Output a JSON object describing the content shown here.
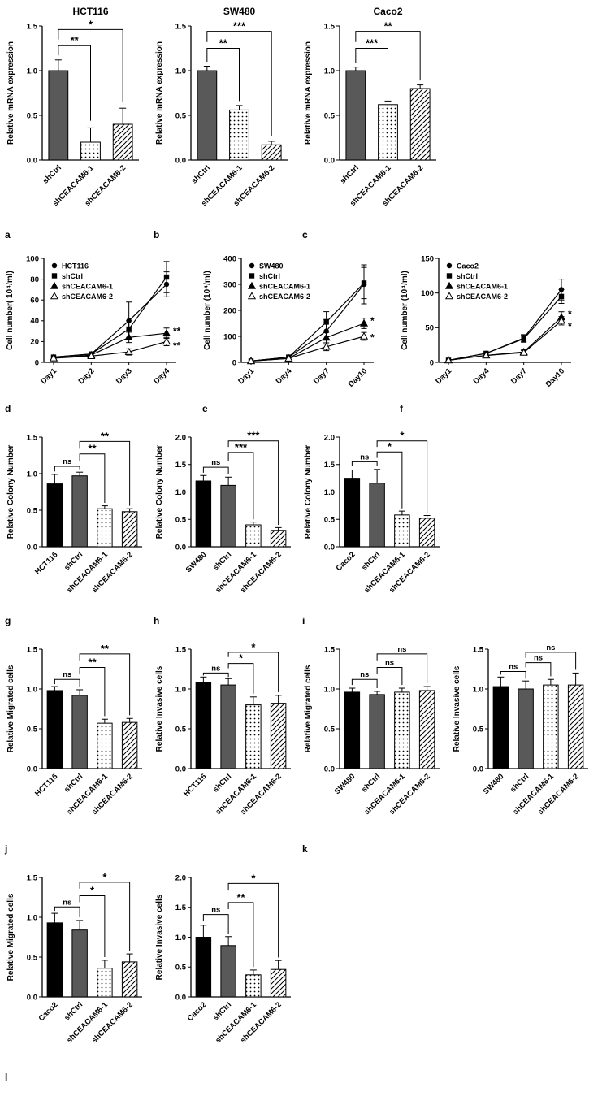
{
  "figure": {
    "background": "#ffffff",
    "axis_color": "#000000",
    "bar_gray": "#595959",
    "panel_letters": [
      "a",
      "b",
      "c",
      "d",
      "e",
      "f",
      "g",
      "h",
      "i",
      "j",
      "k",
      "l"
    ]
  },
  "chart_data": [
    {
      "name": "hct116-mrna",
      "panel": "a",
      "row": 0,
      "preset": "bar3",
      "type": "bar",
      "title": "HCT116",
      "ylabel": "Relative mRNA expression",
      "ylim": [
        0,
        1.5
      ],
      "yticks": [
        0,
        0.5,
        1.0,
        1.5
      ],
      "ytick_labels": [
        "0.0",
        "0.5",
        "1.0",
        "1.5"
      ],
      "categories": [
        "shCtrl",
        "shCEACAM6-1",
        "shCEACAM6-2"
      ],
      "values": [
        1.0,
        0.2,
        0.4
      ],
      "errors": [
        0.12,
        0.16,
        0.18
      ],
      "fills": [
        "gray",
        "dots",
        "hatch"
      ],
      "brackets": [
        {
          "a": 0,
          "b": 1,
          "y": 1.28,
          "ya": 1.17,
          "yb": 0.44,
          "label": "**"
        },
        {
          "a": 0,
          "b": 2,
          "y": 1.46,
          "ya": 1.35,
          "yb": 0.65,
          "label": "*"
        }
      ]
    },
    {
      "name": "sw480-mrna",
      "panel": "b",
      "row": 0,
      "preset": "bar3",
      "type": "bar",
      "title": "SW480",
      "ylabel": "Relative mRNA expression",
      "ylim": [
        0,
        1.5
      ],
      "yticks": [
        0,
        0.5,
        1.0,
        1.5
      ],
      "ytick_labels": [
        "0.0",
        "0.5",
        "1.0",
        "1.5"
      ],
      "categories": [
        "shCtrl",
        "shCEACAM6-1",
        "shCEACAM6-2"
      ],
      "values": [
        1.0,
        0.56,
        0.17
      ],
      "errors": [
        0.05,
        0.05,
        0.04
      ],
      "fills": [
        "gray",
        "dots",
        "hatch"
      ],
      "brackets": [
        {
          "a": 0,
          "b": 1,
          "y": 1.25,
          "ya": 1.1,
          "yb": 0.66,
          "label": "**"
        },
        {
          "a": 0,
          "b": 2,
          "y": 1.44,
          "ya": 1.32,
          "yb": 0.27,
          "label": "***"
        }
      ]
    },
    {
      "name": "caco2-mrna",
      "panel": "c",
      "row": 0,
      "preset": "bar3",
      "type": "bar",
      "title": "Caco2",
      "ylabel": "Relative mRNA expression",
      "ylim": [
        0,
        1.5
      ],
      "yticks": [
        0,
        0.5,
        1.0,
        1.5
      ],
      "ytick_labels": [
        "0.0",
        "0.5",
        "1.0",
        "1.5"
      ],
      "categories": [
        "shCtrl",
        "shCEACAM6-1",
        "shCEACAM6-2"
      ],
      "values": [
        1.0,
        0.62,
        0.8
      ],
      "errors": [
        0.04,
        0.04,
        0.04
      ],
      "fills": [
        "gray",
        "dots",
        "hatch"
      ],
      "brackets": [
        {
          "a": 0,
          "b": 1,
          "y": 1.25,
          "ya": 1.09,
          "yb": 0.71,
          "label": "***"
        },
        {
          "a": 0,
          "b": 2,
          "y": 1.44,
          "ya": 1.32,
          "yb": 0.89,
          "label": "**"
        }
      ]
    },
    {
      "name": "hct116-growth",
      "panel": "d",
      "row": 1,
      "preset": "line",
      "type": "line",
      "ylabel": "Cell number( 10⁴/ml)",
      "ylim": [
        0,
        100
      ],
      "yticks": [
        0,
        20,
        40,
        60,
        80,
        100
      ],
      "ytick_labels": [
        "0",
        "20",
        "40",
        "60",
        "80",
        "100"
      ],
      "categories": [
        "Day1",
        "Day2",
        "Day3",
        "Day4"
      ],
      "series": [
        {
          "name": "HCT116",
          "marker": "circle",
          "values": [
            5,
            8,
            40,
            75
          ],
          "errors": [
            0,
            0,
            18,
            12
          ]
        },
        {
          "name": "shCtrl",
          "marker": "square",
          "values": [
            5,
            8,
            32,
            82
          ],
          "errors": [
            0,
            0,
            8,
            15
          ]
        },
        {
          "name": "shCEACAM6-1",
          "marker": "triangle",
          "values": [
            4,
            7,
            24,
            28
          ],
          "errors": [
            0,
            0,
            5,
            5
          ]
        },
        {
          "name": "shCEACAM6-2",
          "marker": "triangle-open",
          "values": [
            4,
            6,
            10,
            20
          ],
          "errors": [
            0,
            0,
            3,
            4
          ]
        }
      ],
      "annotations": [
        {
          "xi": 3,
          "y": 30,
          "text": "**"
        },
        {
          "xi": 3,
          "y": 16,
          "text": "**"
        }
      ]
    },
    {
      "name": "sw480-growth",
      "panel": "e",
      "row": 1,
      "preset": "line",
      "type": "line",
      "ylabel": "Cell number (10⁴/ml)",
      "ylim": [
        0,
        400
      ],
      "yticks": [
        0,
        100,
        200,
        300,
        400
      ],
      "ytick_labels": [
        "0",
        "100",
        "200",
        "300",
        "400"
      ],
      "categories": [
        "Day1",
        "Day4",
        "Day7",
        "Day10"
      ],
      "series": [
        {
          "name": "SW480",
          "marker": "circle",
          "values": [
            5,
            20,
            120,
            300
          ],
          "errors": [
            0,
            0,
            45,
            75
          ]
        },
        {
          "name": "shCtrl",
          "marker": "square",
          "values": [
            5,
            20,
            155,
            305
          ],
          "errors": [
            0,
            0,
            40,
            60
          ]
        },
        {
          "name": "shCEACAM6-1",
          "marker": "triangle",
          "values": [
            5,
            15,
            95,
            150
          ],
          "errors": [
            0,
            0,
            25,
            20
          ]
        },
        {
          "name": "shCEACAM6-2",
          "marker": "triangle-open",
          "values": [
            5,
            15,
            60,
            100
          ],
          "errors": [
            0,
            0,
            15,
            15
          ]
        }
      ],
      "annotations": [
        {
          "xi": 3,
          "y": 160,
          "text": "*"
        },
        {
          "xi": 3,
          "y": 95,
          "text": "*"
        }
      ]
    },
    {
      "name": "caco2-growth",
      "panel": "f",
      "row": 1,
      "preset": "line",
      "type": "line",
      "ylabel": "Cell number (10⁴/ml)",
      "ylim": [
        0,
        150
      ],
      "yticks": [
        0,
        50,
        100,
        150
      ],
      "ytick_labels": [
        "0",
        "50",
        "100",
        "150"
      ],
      "categories": [
        "Day1",
        "Day4",
        "Day7",
        "Day10"
      ],
      "series": [
        {
          "name": "Caco2",
          "marker": "circle",
          "values": [
            3,
            13,
            35,
            105
          ],
          "errors": [
            0,
            0,
            5,
            15
          ]
        },
        {
          "name": "shCtrl",
          "marker": "square",
          "values": [
            3,
            13,
            34,
            95
          ],
          "errors": [
            0,
            0,
            5,
            10
          ]
        },
        {
          "name": "shCEACAM6-1",
          "marker": "triangle",
          "values": [
            3,
            10,
            15,
            65
          ],
          "errors": [
            0,
            0,
            3,
            8
          ]
        },
        {
          "name": "shCEACAM6-2",
          "marker": "triangle-open",
          "values": [
            3,
            10,
            14,
            60
          ],
          "errors": [
            0,
            0,
            3,
            6
          ]
        }
      ],
      "annotations": [
        {
          "xi": 3,
          "y": 70,
          "text": "*"
        },
        {
          "xi": 3,
          "y": 52,
          "text": "*"
        }
      ]
    },
    {
      "name": "hct116-colony",
      "panel": "g",
      "row": 2,
      "preset": "bar4",
      "type": "bar",
      "ylabel": "Relative Colony Number",
      "ylim": [
        0,
        1.5
      ],
      "yticks": [
        0,
        0.5,
        1.0,
        1.5
      ],
      "ytick_labels": [
        "0.0",
        "0.5",
        "1.0",
        "1.5"
      ],
      "categories": [
        "HCT116",
        "shCtrl",
        "shCEACAM6-1",
        "shCEACAM6-2"
      ],
      "values": [
        0.86,
        0.97,
        0.52,
        0.48
      ],
      "errors": [
        0.13,
        0.05,
        0.04,
        0.04
      ],
      "fills": [
        "black",
        "gray",
        "dots",
        "hatch"
      ],
      "brackets": [
        {
          "a": 0,
          "b": 1,
          "y": 1.1,
          "ya": 1.03,
          "yb": 1.06,
          "label": "ns"
        },
        {
          "a": 1,
          "b": 2,
          "y": 1.27,
          "ya": 1.17,
          "yb": 0.6,
          "label": "**"
        },
        {
          "a": 1,
          "b": 3,
          "y": 1.44,
          "ya": 1.34,
          "yb": 0.56,
          "label": "**"
        }
      ]
    },
    {
      "name": "sw480-colony",
      "panel": "h",
      "row": 2,
      "preset": "bar4",
      "type": "bar",
      "ylabel": "Relative Colony Number",
      "ylim": [
        0,
        2.0
      ],
      "yticks": [
        0,
        0.5,
        1.0,
        1.5,
        2.0
      ],
      "ytick_labels": [
        "0.0",
        "0.5",
        "1.0",
        "1.5",
        "2.0"
      ],
      "categories": [
        "SW480",
        "shCtrl",
        "shCEACAM6-1",
        "shCEACAM6-2"
      ],
      "values": [
        1.2,
        1.12,
        0.4,
        0.3
      ],
      "errors": [
        0.1,
        0.15,
        0.05,
        0.05
      ],
      "fills": [
        "black",
        "gray",
        "dots",
        "hatch"
      ],
      "brackets": [
        {
          "a": 0,
          "b": 1,
          "y": 1.45,
          "ya": 1.35,
          "yb": 1.32,
          "label": "ns"
        },
        {
          "a": 1,
          "b": 2,
          "y": 1.72,
          "ya": 1.57,
          "yb": 0.5,
          "label": "***"
        },
        {
          "a": 1,
          "b": 3,
          "y": 1.93,
          "ya": 1.82,
          "yb": 0.4,
          "label": "***"
        }
      ]
    },
    {
      "name": "caco2-colony",
      "panel": "i",
      "row": 2,
      "preset": "bar4",
      "type": "bar",
      "ylabel": "Relative Colony Number",
      "ylim": [
        0,
        2.0
      ],
      "yticks": [
        0,
        0.5,
        1.0,
        1.5,
        2.0
      ],
      "ytick_labels": [
        "0.0",
        "0.5",
        "1.0",
        "1.5",
        "2.0"
      ],
      "categories": [
        "Caco2",
        "shCtrl",
        "shCEACAM6-1",
        "shCEACAM6-2"
      ],
      "values": [
        1.25,
        1.16,
        0.58,
        0.52
      ],
      "errors": [
        0.15,
        0.25,
        0.07,
        0.05
      ],
      "fills": [
        "black",
        "gray",
        "dots",
        "hatch"
      ],
      "brackets": [
        {
          "a": 0,
          "b": 1,
          "y": 1.55,
          "ya": 1.47,
          "yb": 1.48,
          "label": "ns"
        },
        {
          "a": 1,
          "b": 2,
          "y": 1.73,
          "ya": 1.62,
          "yb": 0.7,
          "label": "*"
        },
        {
          "a": 1,
          "b": 3,
          "y": 1.93,
          "ya": 1.82,
          "yb": 0.62,
          "label": "*"
        }
      ]
    },
    {
      "name": "hct116-migrated",
      "panel": "j",
      "row": 3,
      "preset": "bar4t",
      "type": "bar",
      "ylabel": "Relative Migrated cells",
      "ylim": [
        0,
        1.5
      ],
      "yticks": [
        0,
        0.5,
        1.0,
        1.5
      ],
      "ytick_labels": [
        "0.0",
        "0.5",
        "1.0",
        "1.5"
      ],
      "categories": [
        "HCT116",
        "shCtrl",
        "shCEACAM6-1",
        "shCEACAM6-2"
      ],
      "values": [
        0.98,
        0.92,
        0.57,
        0.58
      ],
      "errors": [
        0.05,
        0.07,
        0.05,
        0.05
      ],
      "fills": [
        "black",
        "gray",
        "dots",
        "hatch"
      ],
      "brackets": [
        {
          "a": 0,
          "b": 1,
          "y": 1.12,
          "ya": 1.06,
          "yb": 1.02,
          "label": "ns"
        },
        {
          "a": 1,
          "b": 2,
          "y": 1.27,
          "ya": 1.19,
          "yb": 0.66,
          "label": "**"
        },
        {
          "a": 1,
          "b": 3,
          "y": 1.44,
          "ya": 1.36,
          "yb": 0.67,
          "label": "**"
        }
      ]
    },
    {
      "name": "hct116-invasive",
      "panel": "",
      "row": 3,
      "preset": "bar4t",
      "type": "bar",
      "ylabel": "Relative Invasive cells",
      "ylim": [
        0,
        1.5
      ],
      "yticks": [
        0,
        0.5,
        1.0,
        1.5
      ],
      "ytick_labels": [
        "0.0",
        "0.5",
        "1.0",
        "1.5"
      ],
      "categories": [
        "HCT116",
        "shCtrl",
        "shCEACAM6-1",
        "shCEACAM6-2"
      ],
      "values": [
        1.08,
        1.05,
        0.8,
        0.82
      ],
      "errors": [
        0.07,
        0.08,
        0.1,
        0.1
      ],
      "fills": [
        "black",
        "gray",
        "dots",
        "hatch"
      ],
      "brackets": [
        {
          "a": 0,
          "b": 1,
          "y": 1.2,
          "ya": 1.17,
          "yb": 1.15,
          "label": "ns"
        },
        {
          "a": 1,
          "b": 2,
          "y": 1.32,
          "ya": 1.26,
          "yb": 0.94,
          "label": "*"
        },
        {
          "a": 1,
          "b": 3,
          "y": 1.46,
          "ya": 1.4,
          "yb": 0.96,
          "label": "*"
        }
      ]
    },
    {
      "name": "sw480-migrated",
      "panel": "k",
      "row": 3,
      "preset": "bar4t",
      "type": "bar",
      "ylabel": "Relative Migrated cells",
      "ylim": [
        0,
        1.5
      ],
      "yticks": [
        0,
        0.5,
        1.0,
        1.5
      ],
      "ytick_labels": [
        "0.0",
        "0.5",
        "1.0",
        "1.5"
      ],
      "categories": [
        "SW480",
        "shCtrl",
        "shCEACAM6-1",
        "shCEACAM6-2"
      ],
      "values": [
        0.96,
        0.93,
        0.96,
        0.98
      ],
      "errors": [
        0.05,
        0.04,
        0.05,
        0.05
      ],
      "fills": [
        "black",
        "gray",
        "dots",
        "hatch"
      ],
      "brackets": [
        {
          "a": 0,
          "b": 1,
          "y": 1.12,
          "ya": 1.05,
          "yb": 1.01,
          "label": "ns"
        },
        {
          "a": 1,
          "b": 2,
          "y": 1.27,
          "ya": 1.19,
          "yb": 1.05,
          "label": "ns"
        },
        {
          "a": 1,
          "b": 3,
          "y": 1.44,
          "ya": 1.36,
          "yb": 1.07,
          "label": "ns"
        }
      ]
    },
    {
      "name": "sw480-invasive",
      "panel": "",
      "row": 3,
      "preset": "bar4t",
      "type": "bar",
      "ylabel": "Relative Invasive cells",
      "ylim": [
        0,
        1.5
      ],
      "yticks": [
        0,
        0.5,
        1.0,
        1.5
      ],
      "ytick_labels": [
        "0.0",
        "0.5",
        "1.0",
        "1.5"
      ],
      "categories": [
        "SW480",
        "shCtrl",
        "shCEACAM6-1",
        "shCEACAM6-2"
      ],
      "values": [
        1.03,
        1.0,
        1.05,
        1.05
      ],
      "errors": [
        0.12,
        0.1,
        0.07,
        0.15
      ],
      "fills": [
        "black",
        "gray",
        "dots",
        "hatch"
      ],
      "brackets": [
        {
          "a": 0,
          "b": 1,
          "y": 1.22,
          "ya": 1.18,
          "yb": 1.13,
          "label": "ns"
        },
        {
          "a": 1,
          "b": 2,
          "y": 1.33,
          "ya": 1.27,
          "yb": 1.16,
          "label": "ns"
        },
        {
          "a": 1,
          "b": 3,
          "y": 1.46,
          "ya": 1.39,
          "yb": 1.24,
          "label": "ns"
        }
      ]
    },
    {
      "name": "caco2-migrated",
      "panel": "l",
      "row": 4,
      "preset": "bar4t",
      "type": "bar",
      "ylabel": "Relative Migrated cells",
      "ylim": [
        0,
        1.5
      ],
      "yticks": [
        0,
        0.5,
        1.0,
        1.5
      ],
      "ytick_labels": [
        "0.0",
        "0.5",
        "1.0",
        "1.5"
      ],
      "categories": [
        "Caco2",
        "shCtrl",
        "shCEACAM6-1",
        "shCEACAM6-2"
      ],
      "values": [
        0.93,
        0.84,
        0.36,
        0.44
      ],
      "errors": [
        0.12,
        0.12,
        0.1,
        0.1
      ],
      "fills": [
        "black",
        "gray",
        "dots",
        "hatch"
      ],
      "brackets": [
        {
          "a": 0,
          "b": 1,
          "y": 1.13,
          "ya": 1.08,
          "yb": 1.0,
          "label": "ns"
        },
        {
          "a": 1,
          "b": 2,
          "y": 1.27,
          "ya": 1.19,
          "yb": 0.5,
          "label": "*"
        },
        {
          "a": 1,
          "b": 3,
          "y": 1.44,
          "ya": 1.36,
          "yb": 0.58,
          "label": "*"
        }
      ]
    },
    {
      "name": "caco2-invasive",
      "panel": "",
      "row": 4,
      "preset": "bar4t",
      "type": "bar",
      "ylabel": "Relative Invasive cells",
      "ylim": [
        0,
        2.0
      ],
      "yticks": [
        0,
        0.5,
        1.0,
        1.5,
        2.0
      ],
      "ytick_labels": [
        "0.0",
        "0.5",
        "1.0",
        "1.5",
        "2.0"
      ],
      "categories": [
        "Caco2",
        "shCtrl",
        "shCEACAM6-1",
        "shCEACAM6-2"
      ],
      "values": [
        1.0,
        0.86,
        0.37,
        0.46
      ],
      "errors": [
        0.2,
        0.15,
        0.08,
        0.15
      ],
      "fills": [
        "black",
        "gray",
        "dots",
        "hatch"
      ],
      "brackets": [
        {
          "a": 0,
          "b": 1,
          "y": 1.38,
          "ya": 1.27,
          "yb": 1.06,
          "label": "ns"
        },
        {
          "a": 1,
          "b": 2,
          "y": 1.58,
          "ya": 1.47,
          "yb": 0.5,
          "label": "**"
        },
        {
          "a": 1,
          "b": 3,
          "y": 1.9,
          "ya": 1.78,
          "yb": 0.66,
          "label": "*"
        }
      ]
    }
  ]
}
